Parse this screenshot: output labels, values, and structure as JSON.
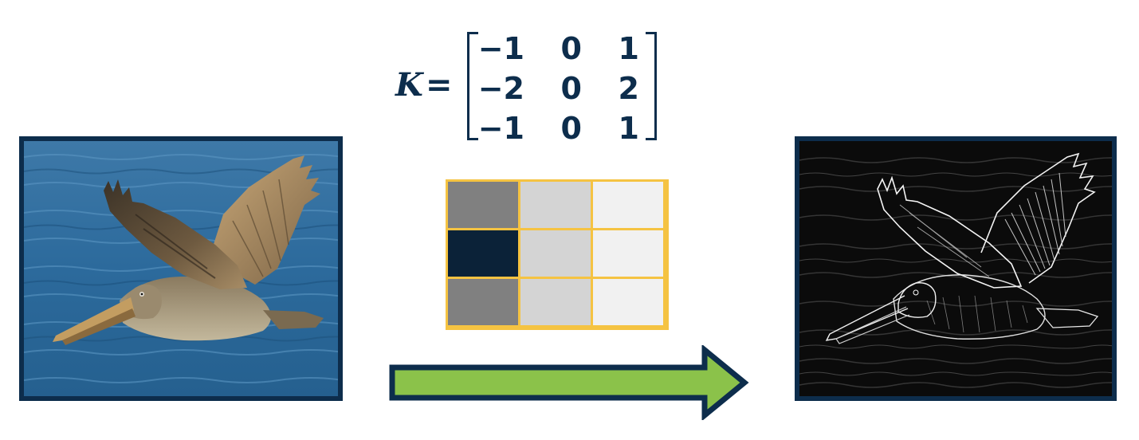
{
  "formula": {
    "symbol": "K",
    "equals": "=",
    "matrix": [
      [
        "−1",
        "0",
        "1"
      ],
      [
        "−2",
        "0",
        "2"
      ],
      [
        "−1",
        "0",
        "1"
      ]
    ]
  },
  "kernel_grid": {
    "colors": [
      [
        "#808080",
        "#d4d4d4",
        "#f1f1f1"
      ],
      [
        "#0b2238",
        "#d4d4d4",
        "#f1f1f1"
      ],
      [
        "#808080",
        "#d4d4d4",
        "#f1f1f1"
      ]
    ],
    "border_color": "#f5c342"
  },
  "images": {
    "input": "pelican-photo",
    "output": "pelican-edge-map"
  },
  "colors": {
    "frame": "#0d2d4c",
    "arrow_fill": "#8bc24a",
    "arrow_stroke": "#0d2d4c",
    "text": "#0d2d4c"
  }
}
